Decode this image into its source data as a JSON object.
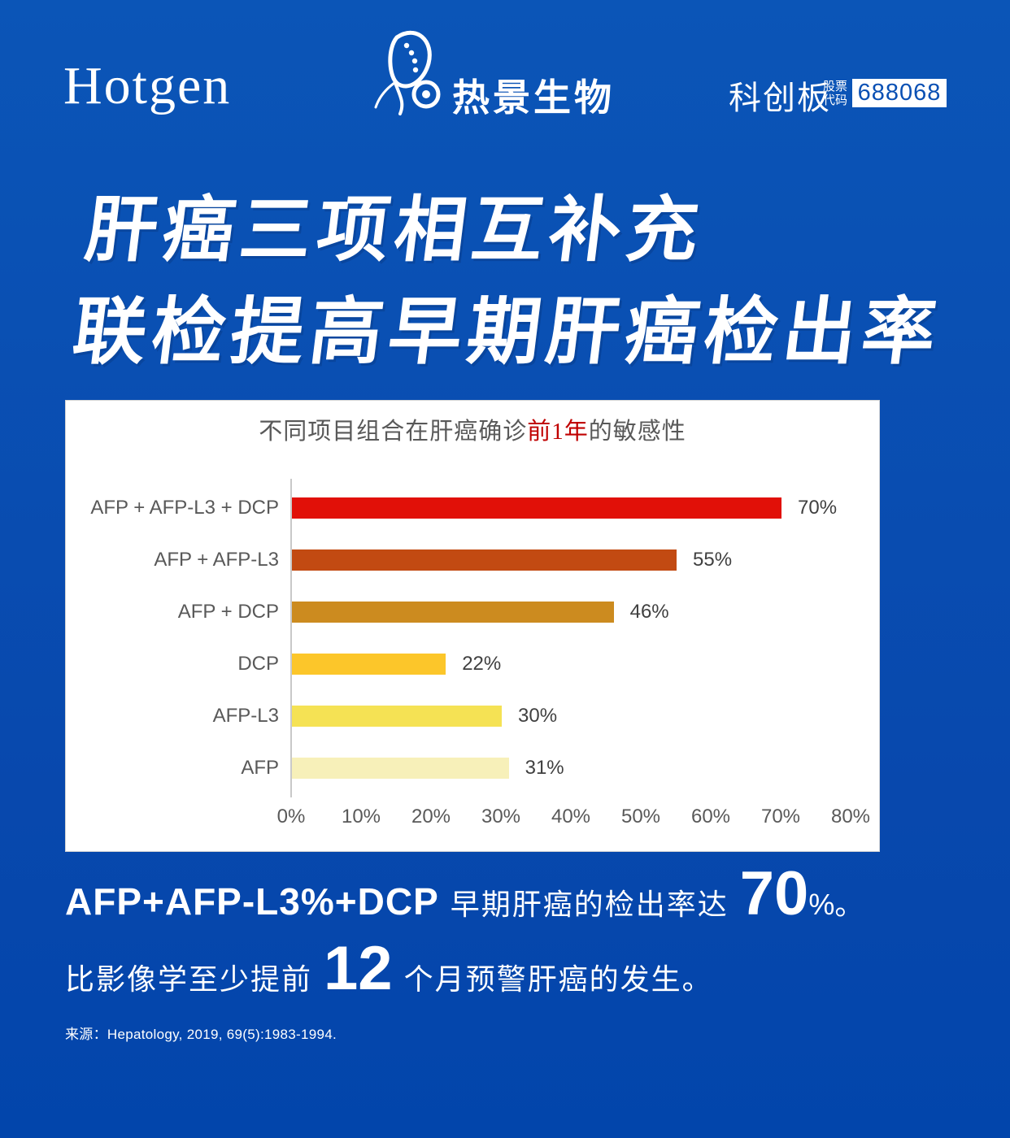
{
  "brand": {
    "logo_text": "Hotgen",
    "logo_cn": "热景生物"
  },
  "stock": {
    "board": "科创板",
    "label_line1": "股票",
    "label_line2": "代码",
    "code": "688068"
  },
  "headline": {
    "line1": "肝癌三项相互补充",
    "line2": "联检提高早期肝癌检出率"
  },
  "chart_data": {
    "type": "bar",
    "orientation": "horizontal",
    "title_prefix": "不同项目组合在肝癌确诊",
    "title_highlight": "前1年",
    "title_suffix": "的敏感性",
    "title_highlight_color": "#c00000",
    "categories": [
      "AFP + AFP-L3 + DCP",
      "AFP + AFP-L3",
      "AFP + DCP",
      "DCP",
      "AFP-L3",
      "AFP"
    ],
    "values": [
      70,
      55,
      46,
      22,
      30,
      31
    ],
    "value_labels": [
      "70%",
      "55%",
      "46%",
      "22%",
      "30%",
      "31%"
    ],
    "bar_colors": [
      "#e11008",
      "#c24a12",
      "#cc8b1f",
      "#fcc62a",
      "#f5e254",
      "#f7f0b9"
    ],
    "x_ticks": [
      "0%",
      "10%",
      "20%",
      "30%",
      "40%",
      "50%",
      "60%",
      "70%",
      "80%"
    ],
    "xlim": [
      0,
      80
    ],
    "grid": false,
    "legend": false
  },
  "takeaway": {
    "line1_en": "AFP+AFP-L3%+DCP",
    "line1_cn": "早期肝癌的检出率达",
    "line1_big": "70",
    "line1_tail": "%。",
    "line2_cn_pre": "比影像学至少提前",
    "line2_big": "12",
    "line2_cn_post": "个月预警肝癌的发生。"
  },
  "source": {
    "label": "来源：",
    "text": "Hepatology, 2019, 69(5):1983-1994."
  },
  "colors": {
    "background_top": "#0b55b7",
    "background_bottom": "#0245ab",
    "panel": "#ffffff",
    "label_gray": "#595959",
    "value_gray": "#404040",
    "stock_code_blue": "#0a50b4",
    "title_highlight_red": "#c00000"
  }
}
